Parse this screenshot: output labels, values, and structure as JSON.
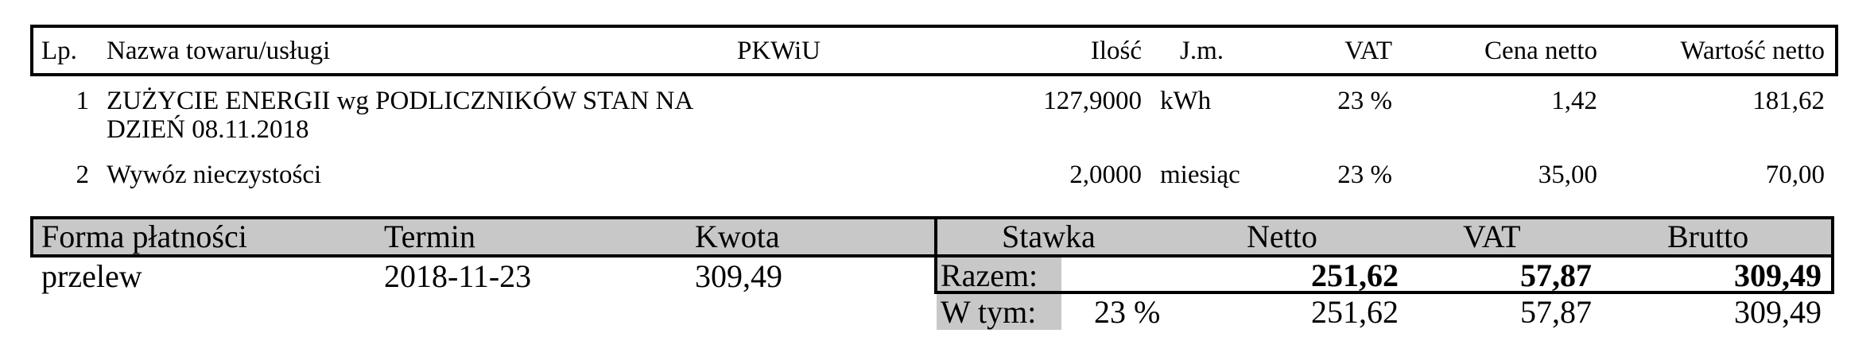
{
  "items_table": {
    "headers": {
      "lp": "Lp.",
      "name": "Nazwa towaru/usługi",
      "pkwiu": "PKWiU",
      "qty": "Ilość",
      "unit": "J.m.",
      "vat": "VAT",
      "net_price": "Cena netto",
      "net_value": "Wartość netto"
    },
    "rows": [
      {
        "lp": "1",
        "name_line1": "ZUŻYCIE ENERGII wg PODLICZNIKÓW STAN NA",
        "name_line2": "DZIEŃ 08.11.2018",
        "qty": "127,9000",
        "unit": "kWh",
        "vat": "23 %",
        "net_price": "1,42",
        "net_value": "181,62"
      },
      {
        "lp": "2",
        "name_line1": "Wywóz nieczystości",
        "qty": "2,0000",
        "unit": "miesiąc",
        "vat": "23 %",
        "net_price": "35,00",
        "net_value": "70,00"
      }
    ]
  },
  "payment": {
    "headers": {
      "method": "Forma płatności",
      "due": "Termin",
      "amount": "Kwota"
    },
    "method": "przelew",
    "due": "2018-11-23",
    "amount": "309,49"
  },
  "summary": {
    "headers": {
      "rate": "Stawka",
      "net": "Netto",
      "vat": "VAT",
      "gross": "Brutto"
    },
    "total": {
      "label": "Razem:",
      "net": "251,62",
      "vat": "57,87",
      "gross": "309,49"
    },
    "breakdown": {
      "label": "W tym:",
      "rate": "23 %",
      "net": "251,62",
      "vat": "57,87",
      "gross": "309,49"
    }
  },
  "colors": {
    "header_shade": "#c8c8c8",
    "border": "#000000"
  }
}
